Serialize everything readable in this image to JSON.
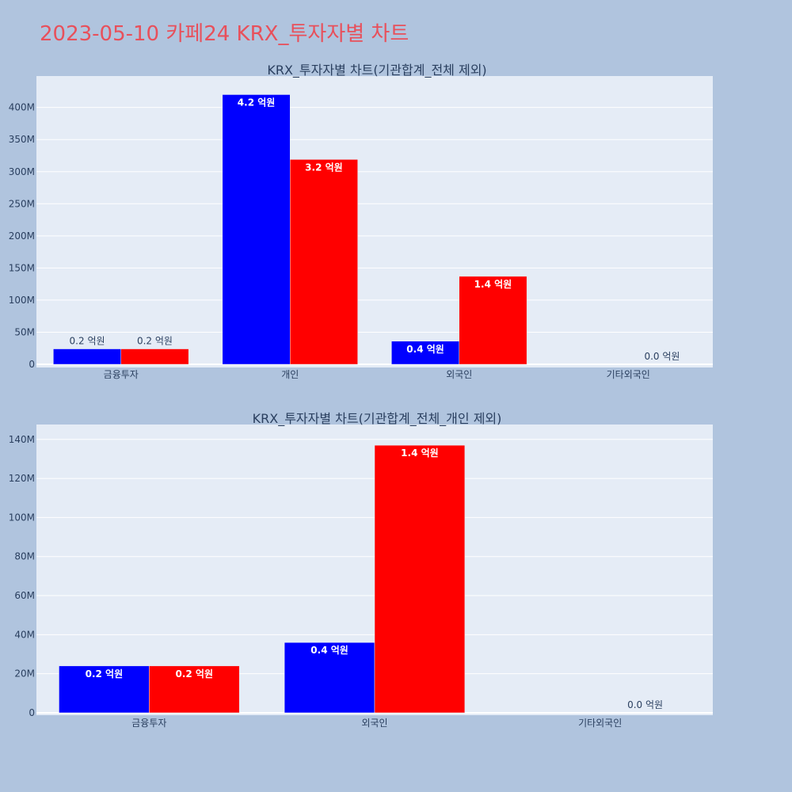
{
  "page": {
    "title": "2023-05-10 카페24 KRX_투자자별 차트"
  },
  "colors": {
    "page_background": "#b0c4de",
    "title": "#e8505b",
    "plot_background": "#e5ecf6",
    "series_blue": "#0000ff",
    "series_red": "#ff0000"
  },
  "chart_data": [
    {
      "type": "bar",
      "title": "KRX_투자자별 차트(기관합계_전체 제외)",
      "categories": [
        "금융투자",
        "개인",
        "외국인",
        "기타외국인"
      ],
      "series": [
        {
          "color": "#0000ff",
          "values": [
            24000000,
            420000000,
            36000000,
            0
          ],
          "labels": [
            "0.2 억원",
            "4.2 억원",
            "0.4 억원",
            ""
          ]
        },
        {
          "color": "#ff0000",
          "values": [
            24000000,
            319000000,
            137000000,
            0
          ],
          "labels": [
            "0.2 억원",
            "3.2 억원",
            "1.4 억원",
            "0.0 억원"
          ]
        }
      ],
      "ylim": [
        0,
        444000000
      ],
      "yticks": [
        0,
        50000000,
        100000000,
        150000000,
        200000000,
        250000000,
        300000000,
        350000000,
        400000000
      ],
      "ytick_labels": [
        "0",
        "50M",
        "100M",
        "150M",
        "200M",
        "250M",
        "300M",
        "350M",
        "400M"
      ],
      "grid": true,
      "legend": "none"
    },
    {
      "type": "bar",
      "title": "KRX_투자자별 차트(기관합계_전체_개인 제외)",
      "categories": [
        "금융투자",
        "외국인",
        "기타외국인"
      ],
      "series": [
        {
          "color": "#0000ff",
          "values": [
            24000000,
            36000000,
            0
          ],
          "labels": [
            "0.2 억원",
            "0.4 억원",
            ""
          ]
        },
        {
          "color": "#ff0000",
          "values": [
            24000000,
            137000000,
            0
          ],
          "labels": [
            "0.2 억원",
            "1.4 억원",
            "0.0 억원"
          ]
        }
      ],
      "ylim": [
        0,
        146000000
      ],
      "yticks": [
        0,
        20000000,
        40000000,
        60000000,
        80000000,
        100000000,
        120000000,
        140000000
      ],
      "ytick_labels": [
        "0",
        "20M",
        "40M",
        "60M",
        "80M",
        "100M",
        "120M",
        "140M"
      ],
      "grid": true,
      "legend": "none"
    }
  ]
}
